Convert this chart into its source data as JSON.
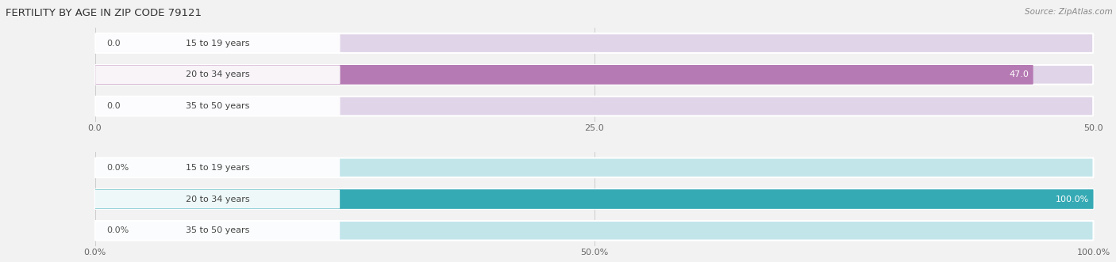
{
  "title": "FERTILITY BY AGE IN ZIP CODE 79121",
  "source_text": "Source: ZipAtlas.com",
  "top_chart": {
    "categories": [
      "15 to 19 years",
      "20 to 34 years",
      "35 to 50 years"
    ],
    "values": [
      0.0,
      47.0,
      0.0
    ],
    "xlim": [
      0,
      50
    ],
    "xticks": [
      0.0,
      25.0,
      50.0
    ],
    "xtick_labels": [
      "0.0",
      "25.0",
      "50.0"
    ],
    "bar_color": "#b57ab3",
    "bar_bg_color": "#e0d5e8",
    "label_color_inside": "#ffffff",
    "label_color_outside": "#555555",
    "value_threshold": 40
  },
  "bottom_chart": {
    "categories": [
      "15 to 19 years",
      "20 to 34 years",
      "35 to 50 years"
    ],
    "values": [
      0.0,
      100.0,
      0.0
    ],
    "xlim": [
      0,
      100
    ],
    "xticks": [
      0.0,
      50.0,
      100.0
    ],
    "xtick_labels": [
      "0.0%",
      "50.0%",
      "100.0%"
    ],
    "bar_color": "#35aab4",
    "bar_bg_color": "#c2e5ea",
    "label_color_inside": "#ffffff",
    "label_color_outside": "#555555",
    "value_threshold": 80
  },
  "fig_bg_color": "#f2f2f2",
  "bar_row_bg_color": "#e8e8e8",
  "bar_height": 0.62,
  "label_fontsize": 8.0,
  "tick_fontsize": 8.0,
  "title_fontsize": 9.5,
  "category_fontsize": 8.0,
  "source_fontsize": 7.5
}
